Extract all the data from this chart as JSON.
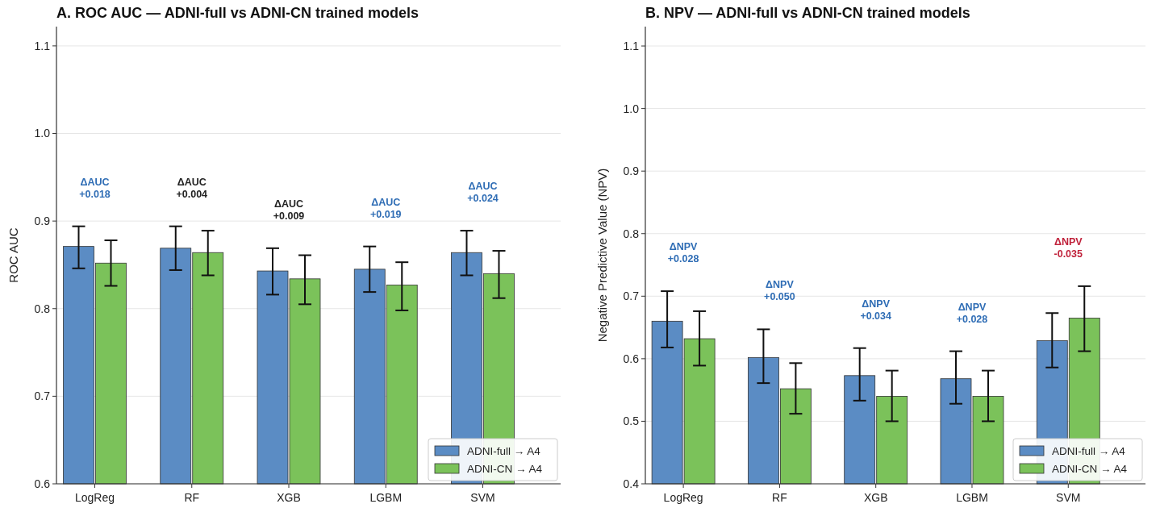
{
  "chart_data": [
    {
      "type": "bar",
      "title": "A.  ROC AUC  —  ADNI-full vs ADNI-CN trained models",
      "ylabel": "ROC AUC",
      "categories": [
        "LogReg",
        "RF",
        "XGB",
        "LGBM",
        "SVM"
      ],
      "series": [
        {
          "name": "ADNI-full → A4",
          "color": "#5b8cc4",
          "values": [
            0.871,
            0.869,
            0.843,
            0.845,
            0.864
          ],
          "errors": [
            [
              0.846,
              0.894
            ],
            [
              0.844,
              0.894
            ],
            [
              0.816,
              0.869
            ],
            [
              0.819,
              0.871
            ],
            [
              0.838,
              0.889
            ]
          ]
        },
        {
          "name": "ADNI-CN → A4",
          "color": "#7bc25a",
          "values": [
            0.852,
            0.864,
            0.834,
            0.827,
            0.84
          ],
          "errors": [
            [
              0.826,
              0.878
            ],
            [
              0.838,
              0.889
            ],
            [
              0.805,
              0.861
            ],
            [
              0.798,
              0.853
            ],
            [
              0.812,
              0.866
            ]
          ]
        }
      ],
      "ylim": [
        0.6,
        1.122
      ],
      "yticks": [
        0.6,
        0.7,
        0.8,
        0.9,
        {
          "value": 1,
          "label": "1.0"
        },
        1.1
      ],
      "grid": "y",
      "legend": "bottom right",
      "annotations": [
        "ΔAUC\n+0.018",
        "ΔAUC\n+0.004",
        "ΔAUC\n+0.009",
        "ΔAUC\n+0.019",
        "ΔAUC\n+0.024"
      ]
    },
    {
      "type": "bar",
      "title": "B.  NPV  —  ADNI-full vs ADNI-CN trained models",
      "ylabel": "Negative Predictive Value (NPV)",
      "categories": [
        "LogReg",
        "RF",
        "XGB",
        "LGBM",
        "SVM"
      ],
      "series": [
        {
          "name": "ADNI-full → A4",
          "color": "#5b8cc4",
          "values": [
            0.66,
            0.602,
            0.573,
            0.568,
            0.629
          ],
          "errors": [
            [
              0.618,
              0.708
            ],
            [
              0.561,
              0.647
            ],
            [
              0.533,
              0.617
            ],
            [
              0.528,
              0.612
            ],
            [
              0.586,
              0.673
            ]
          ]
        },
        {
          "name": "ADNI-CN → A4",
          "color": "#7bc25a",
          "values": [
            0.632,
            0.552,
            0.54,
            0.54,
            0.665
          ],
          "errors": [
            [
              0.589,
              0.676
            ],
            [
              0.512,
              0.593
            ],
            [
              0.5,
              0.581
            ],
            [
              0.5,
              0.581
            ],
            [
              0.612,
              0.716
            ]
          ]
        }
      ],
      "ylim": [
        0.4,
        1.131
      ],
      "yticks": [
        0.4,
        0.5,
        0.6,
        0.7,
        0.8,
        0.9,
        {
          "value": 1,
          "label": "1.0"
        },
        1.1
      ],
      "grid": "y",
      "legend": "bottom right",
      "annotations": [
        "ΔNPV\n+0.028",
        "ΔNPV\n+0.050",
        "ΔNPV\n+0.034",
        "ΔNPV\n+0.028",
        "ΔNPV\n-0.035"
      ]
    }
  ]
}
